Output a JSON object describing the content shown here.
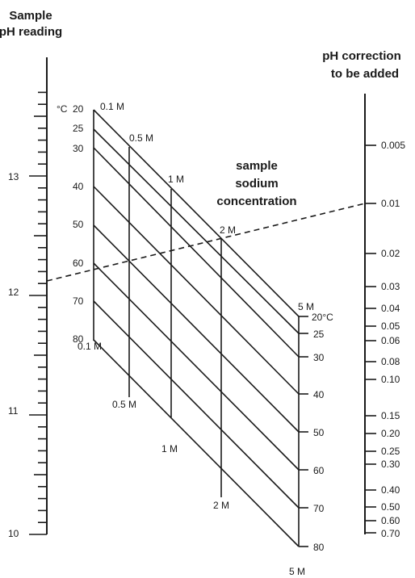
{
  "left_scale": {
    "title": [
      "Sample",
      "pH reading"
    ],
    "range": [
      10,
      13.7
    ],
    "major_ticks": [
      10,
      11,
      12,
      13
    ],
    "major_labels": [
      "10",
      "11",
      "12",
      "13"
    ],
    "minor_step": 0.1
  },
  "right_scale": {
    "title": [
      "pH correction",
      "to be added"
    ],
    "ticks": [
      "0.005",
      "0.01",
      "0.02",
      "0.03",
      "0.04",
      "0.05",
      "0.06",
      "0.08",
      "0.10",
      "0.15",
      "0.20",
      "0.25",
      "0.30",
      "0.40",
      "0.50",
      "0.60",
      "0.70"
    ]
  },
  "grid": {
    "title": [
      "sample",
      "sodium",
      "concentration"
    ],
    "temp_unit_prefix": "°C",
    "left_temps": [
      "20",
      "25",
      "30",
      "40",
      "50",
      "60",
      "70",
      "80"
    ],
    "right_temps": [
      "20°C",
      "25",
      "30",
      "40",
      "50",
      "60",
      "70",
      "80"
    ],
    "conc_top": [
      "0.1 M",
      "0.5 M",
      "1 M",
      "2 M",
      "5 M"
    ],
    "conc_bottom": [
      "0.1 M",
      "0.5 M",
      "1 M",
      "2 M",
      "5 M"
    ]
  },
  "example_line": {
    "from_ph": 12.15,
    "to_correction": "0.01",
    "style": "dashed"
  }
}
